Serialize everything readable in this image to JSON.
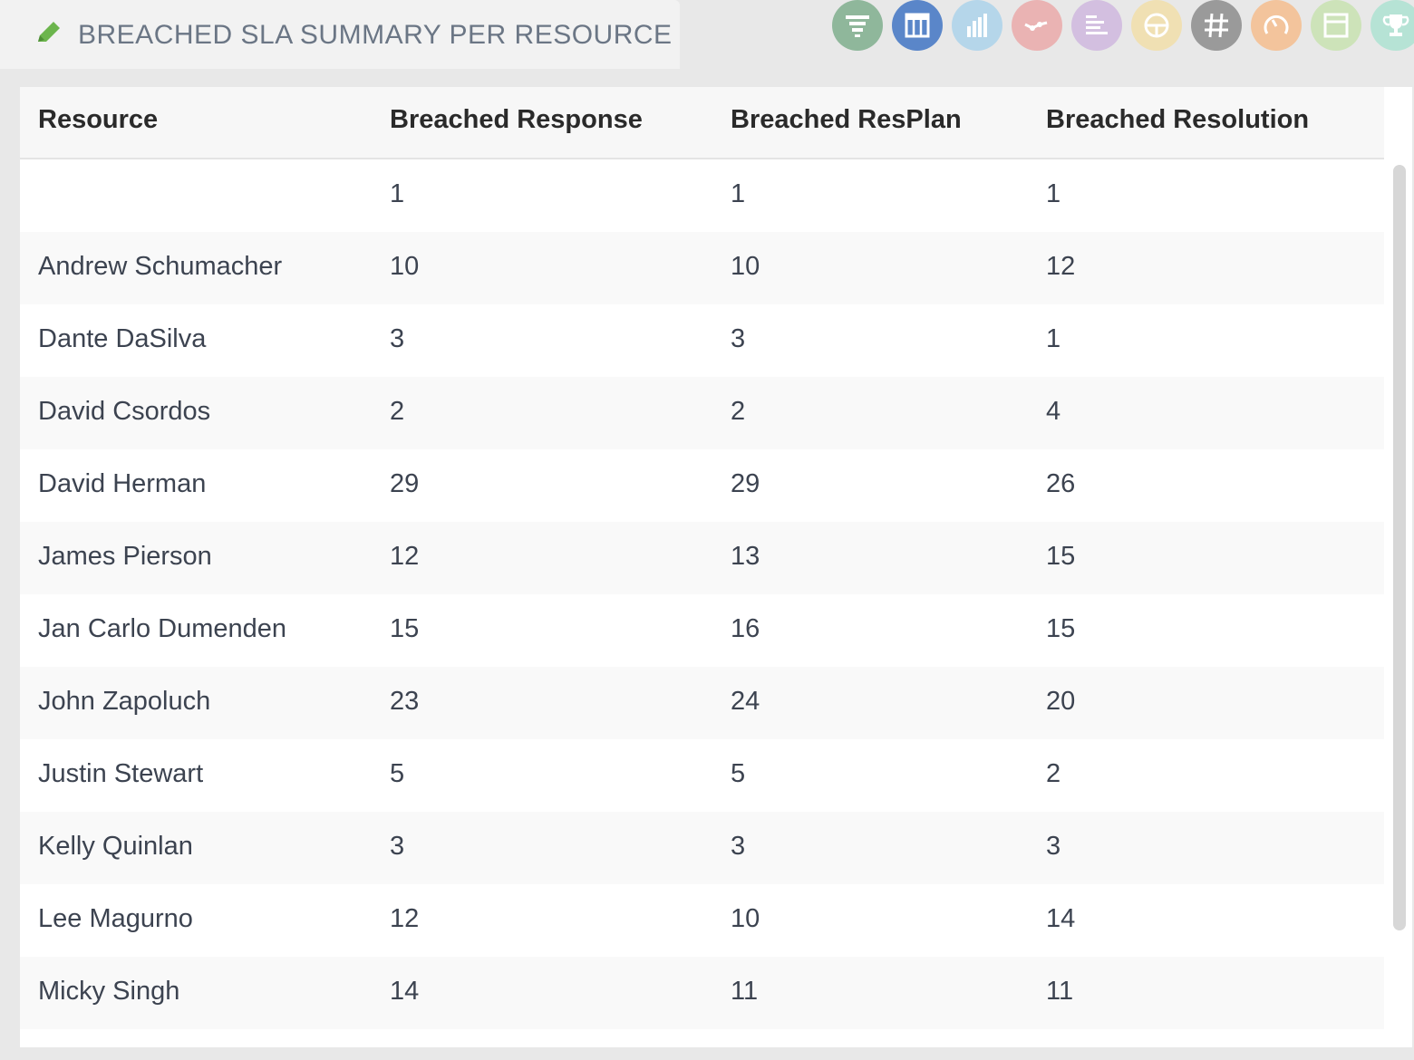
{
  "title": "BREACHED SLA SUMMARY PER RESOURCE",
  "toolbar": [
    {
      "name": "funnel-chart-icon",
      "color": "#8fb79b"
    },
    {
      "name": "table-icon",
      "color": "#5a86c9"
    },
    {
      "name": "bar-chart-icon",
      "color": "#b5d6ea"
    },
    {
      "name": "line-chart-icon",
      "color": "#eab3b3"
    },
    {
      "name": "horizontal-bar-icon",
      "color": "#d3bfe0"
    },
    {
      "name": "pie-chart-icon",
      "color": "#f0e0b3"
    },
    {
      "name": "number-icon",
      "color": "#9a9a9a"
    },
    {
      "name": "gauge-icon",
      "color": "#f3c49c"
    },
    {
      "name": "card-icon",
      "color": "#cde3b9"
    },
    {
      "name": "trophy-icon",
      "color": "#b6e3d5"
    }
  ],
  "table": {
    "headers": [
      "Resource",
      "Breached Response",
      "Breached ResPlan",
      "Breached Resolution"
    ],
    "rows": [
      [
        "",
        "1",
        "1",
        "1"
      ],
      [
        "Andrew Schumacher",
        "10",
        "10",
        "12"
      ],
      [
        "Dante DaSilva",
        "3",
        "3",
        "1"
      ],
      [
        "David Csordos",
        "2",
        "2",
        "4"
      ],
      [
        "David Herman",
        "29",
        "29",
        "26"
      ],
      [
        "James Pierson",
        "12",
        "13",
        "15"
      ],
      [
        "Jan Carlo Dumenden",
        "15",
        "16",
        "15"
      ],
      [
        "John Zapoluch",
        "23",
        "24",
        "20"
      ],
      [
        "Justin Stewart",
        "5",
        "5",
        "2"
      ],
      [
        "Kelly Quinlan",
        "3",
        "3",
        "3"
      ],
      [
        "Lee Magurno",
        "12",
        "10",
        "14"
      ],
      [
        "Micky Singh",
        "14",
        "11",
        "11"
      ]
    ]
  }
}
